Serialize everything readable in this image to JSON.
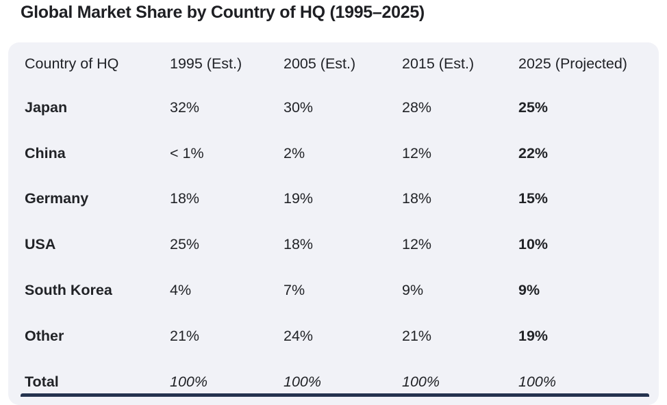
{
  "page": {
    "title": "Global Market Share by Country of HQ (1995–2025)"
  },
  "table": {
    "columns": [
      "Country of HQ",
      "1995 (Est.)",
      "2005 (Est.)",
      "2015 (Est.)",
      "2025 (Projected)"
    ],
    "rows": [
      {
        "country": "Japan",
        "values": [
          "32%",
          "30%",
          "28%",
          "25%"
        ]
      },
      {
        "country": "China",
        "values": [
          "< 1%",
          "2%",
          "12%",
          "22%"
        ]
      },
      {
        "country": "Germany",
        "values": [
          "18%",
          "19%",
          "18%",
          "15%"
        ]
      },
      {
        "country": "USA",
        "values": [
          "25%",
          "18%",
          "12%",
          "10%"
        ]
      },
      {
        "country": "South Korea",
        "values": [
          "4%",
          "7%",
          "9%",
          "9%"
        ]
      },
      {
        "country": "Other",
        "values": [
          "21%",
          "24%",
          "21%",
          "19%"
        ]
      },
      {
        "country": "Total",
        "values": [
          "100%",
          "100%",
          "100%",
          "100%"
        ]
      }
    ]
  },
  "chart_data": {
    "type": "table",
    "title": "Global Market Share by Country of HQ (1995–2025)",
    "columns": [
      "Country of HQ",
      "1995 (Est.)",
      "2005 (Est.)",
      "2015 (Est.)",
      "2025 (Projected)"
    ],
    "rows": [
      [
        "Japan",
        "32%",
        "30%",
        "28%",
        "25%"
      ],
      [
        "China",
        "< 1%",
        "2%",
        "12%",
        "22%"
      ],
      [
        "Germany",
        "18%",
        "19%",
        "18%",
        "15%"
      ],
      [
        "USA",
        "25%",
        "18%",
        "12%",
        "10%"
      ],
      [
        "South Korea",
        "4%",
        "7%",
        "9%",
        "9%"
      ],
      [
        "Other",
        "21%",
        "24%",
        "21%",
        "19%"
      ],
      [
        "Total",
        "100%",
        "100%",
        "100%",
        "100%"
      ]
    ],
    "notes": "2025 column values are bold (projected emphasis); Total row values are italic; country names bold"
  }
}
